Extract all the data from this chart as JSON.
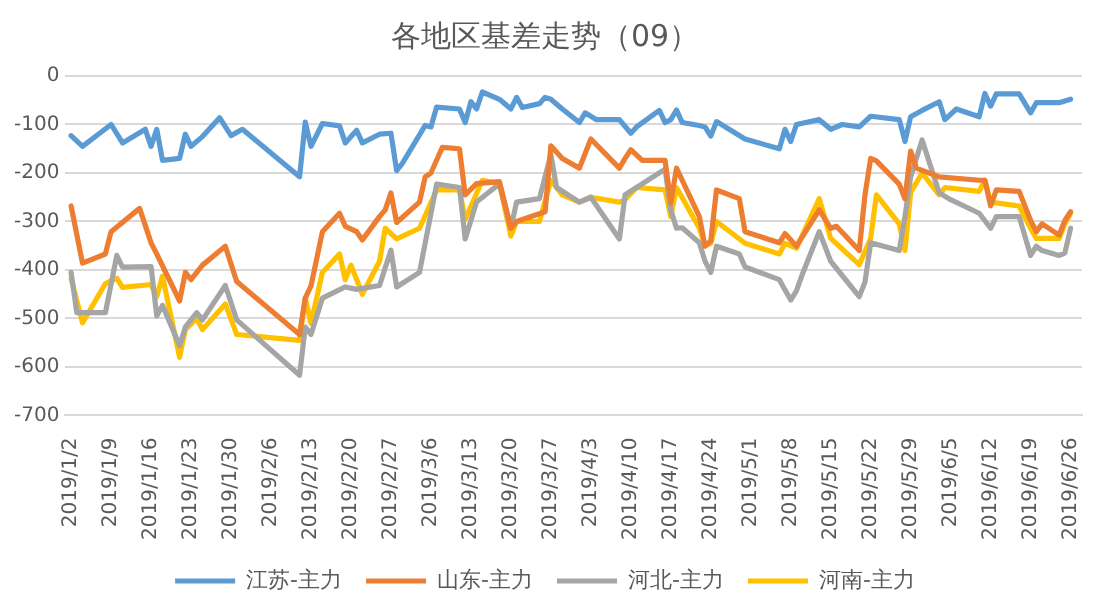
{
  "chart_data": {
    "type": "line",
    "title": "各地区基差走势（09）",
    "xlim": [
      "2019-01-01",
      "2019-06-28"
    ],
    "xticks": [
      {
        "value": "2019-01-02",
        "label": "2019/1/2"
      },
      {
        "value": "2019-01-09",
        "label": "2019/1/9"
      },
      {
        "value": "2019-01-16",
        "label": "2019/1/16"
      },
      {
        "value": "2019-01-23",
        "label": "2019/1/23"
      },
      {
        "value": "2019-01-30",
        "label": "2019/1/30"
      },
      {
        "value": "2019-02-06",
        "label": "2019/2/6"
      },
      {
        "value": "2019-02-13",
        "label": "2019/2/13"
      },
      {
        "value": "2019-02-20",
        "label": "2019/2/20"
      },
      {
        "value": "2019-02-27",
        "label": "2019/2/27"
      },
      {
        "value": "2019-03-06",
        "label": "2019/3/6"
      },
      {
        "value": "2019-03-13",
        "label": "2019/3/13"
      },
      {
        "value": "2019-03-20",
        "label": "2019/3/20"
      },
      {
        "value": "2019-03-27",
        "label": "2019/3/27"
      },
      {
        "value": "2019-04-03",
        "label": "2019/4/3"
      },
      {
        "value": "2019-04-10",
        "label": "2019/4/10"
      },
      {
        "value": "2019-04-17",
        "label": "2019/4/17"
      },
      {
        "value": "2019-04-24",
        "label": "2019/4/24"
      },
      {
        "value": "2019-05-01",
        "label": "2019/5/1"
      },
      {
        "value": "2019-05-08",
        "label": "2019/5/8"
      },
      {
        "value": "2019-05-15",
        "label": "2019/5/15"
      },
      {
        "value": "2019-05-22",
        "label": "2019/5/22"
      },
      {
        "value": "2019-05-29",
        "label": "2019/5/29"
      },
      {
        "value": "2019-06-05",
        "label": "2019/6/5"
      },
      {
        "value": "2019-06-12",
        "label": "2019/6/12"
      },
      {
        "value": "2019-06-19",
        "label": "2019/6/19"
      },
      {
        "value": "2019-06-26",
        "label": "2019/6/26"
      }
    ],
    "ylim": [
      -700,
      0
    ],
    "yticks": [
      -700,
      -600,
      -500,
      -400,
      -300,
      -200,
      -100,
      0
    ],
    "grid": "y",
    "legend": "bottom",
    "line_style": "solid",
    "series": [
      {
        "name": "江苏-主力",
        "color": "#5b9bd5",
        "x": [
          "2019-01-02",
          "2019-01-04",
          "2019-01-09",
          "2019-01-11",
          "2019-01-15",
          "2019-01-16",
          "2019-01-17",
          "2019-01-18",
          "2019-01-21",
          "2019-01-22",
          "2019-01-23",
          "2019-01-25",
          "2019-01-28",
          "2019-01-30",
          "2019-02-01",
          "2019-02-11",
          "2019-02-12",
          "2019-02-13",
          "2019-02-15",
          "2019-02-18",
          "2019-02-19",
          "2019-02-21",
          "2019-02-22",
          "2019-02-25",
          "2019-02-27",
          "2019-02-28",
          "2019-03-01",
          "2019-03-05",
          "2019-03-06",
          "2019-03-07",
          "2019-03-11",
          "2019-03-12",
          "2019-03-13",
          "2019-03-14",
          "2019-03-15",
          "2019-03-18",
          "2019-03-20",
          "2019-03-21",
          "2019-03-22",
          "2019-03-25",
          "2019-03-26",
          "2019-03-27",
          "2019-03-29",
          "2019-04-01",
          "2019-04-02",
          "2019-04-04",
          "2019-04-08",
          "2019-04-10",
          "2019-04-11",
          "2019-04-15",
          "2019-04-16",
          "2019-04-17",
          "2019-04-18",
          "2019-04-19",
          "2019-04-22",
          "2019-04-23",
          "2019-04-24",
          "2019-04-25",
          "2019-04-30",
          "2019-05-06",
          "2019-05-07",
          "2019-05-08",
          "2019-05-09",
          "2019-05-13",
          "2019-05-15",
          "2019-05-17",
          "2019-05-20",
          "2019-05-22",
          "2019-05-27",
          "2019-05-28",
          "2019-05-29",
          "2019-05-31",
          "2019-06-03",
          "2019-06-04",
          "2019-06-06",
          "2019-06-10",
          "2019-06-11",
          "2019-06-12",
          "2019-06-13",
          "2019-06-17",
          "2019-06-19",
          "2019-06-20",
          "2019-06-24",
          "2019-06-26"
        ],
        "values": [
          -123,
          -145,
          -100,
          -138,
          -110,
          -145,
          -110,
          -174,
          -170,
          -120,
          -145,
          -125,
          -86,
          -123,
          -110,
          -208,
          -95,
          -145,
          -98,
          -103,
          -138,
          -112,
          -138,
          -120,
          -118,
          -195,
          -180,
          -102,
          -105,
          -64,
          -68,
          -96,
          -53,
          -68,
          -33,
          -48,
          -68,
          -44,
          -65,
          -57,
          -44,
          -48,
          -68,
          -96,
          -76,
          -90,
          -90,
          -118,
          -105,
          -71,
          -96,
          -90,
          -70,
          -96,
          -102,
          -105,
          -124,
          -94,
          -130,
          -150,
          -110,
          -135,
          -100,
          -90,
          -110,
          -100,
          -105,
          -83,
          -90,
          -135,
          -84,
          -71,
          -53,
          -90,
          -68,
          -84,
          -36,
          -62,
          -37,
          -37,
          -76,
          -55,
          -55,
          -48
        ]
      },
      {
        "name": "山东-主力",
        "color": "#ed7d31",
        "x": [
          "2019-01-02",
          "2019-01-04",
          "2019-01-08",
          "2019-01-09",
          "2019-01-14",
          "2019-01-16",
          "2019-01-17",
          "2019-01-21",
          "2019-01-22",
          "2019-01-23",
          "2019-01-25",
          "2019-01-29",
          "2019-01-31",
          "2019-02-11",
          "2019-02-12",
          "2019-02-13",
          "2019-02-15",
          "2019-02-18",
          "2019-02-19",
          "2019-02-21",
          "2019-02-22",
          "2019-02-25",
          "2019-02-26",
          "2019-02-27",
          "2019-02-28",
          "2019-03-04",
          "2019-03-05",
          "2019-03-06",
          "2019-03-08",
          "2019-03-11",
          "2019-03-12",
          "2019-03-14",
          "2019-03-18",
          "2019-03-20",
          "2019-03-21",
          "2019-03-26",
          "2019-03-27",
          "2019-03-29",
          "2019-04-01",
          "2019-04-03",
          "2019-04-08",
          "2019-04-09",
          "2019-04-10",
          "2019-04-12",
          "2019-04-16",
          "2019-04-17",
          "2019-04-18",
          "2019-04-22",
          "2019-04-23",
          "2019-04-24",
          "2019-04-25",
          "2019-04-29",
          "2019-04-30",
          "2019-05-06",
          "2019-05-07",
          "2019-05-09",
          "2019-05-13",
          "2019-05-15",
          "2019-05-16",
          "2019-05-20",
          "2019-05-21",
          "2019-05-22",
          "2019-05-23",
          "2019-05-27",
          "2019-05-28",
          "2019-05-29",
          "2019-05-30",
          "2019-06-03",
          "2019-06-10",
          "2019-06-11",
          "2019-06-12",
          "2019-06-13",
          "2019-06-17",
          "2019-06-19",
          "2019-06-20",
          "2019-06-21",
          "2019-06-24",
          "2019-06-25",
          "2019-06-26"
        ],
        "values": [
          -268,
          -386,
          -367,
          -321,
          -273,
          -344,
          -367,
          -464,
          -405,
          -420,
          -390,
          -351,
          -424,
          -533,
          -458,
          -433,
          -321,
          -283,
          -310,
          -321,
          -338,
          -290,
          -276,
          -241,
          -302,
          -260,
          -208,
          -200,
          -147,
          -150,
          -245,
          -222,
          -218,
          -314,
          -300,
          -280,
          -144,
          -170,
          -190,
          -130,
          -190,
          -170,
          -152,
          -174,
          -174,
          -261,
          -190,
          -290,
          -351,
          -340,
          -235,
          -253,
          -321,
          -344,
          -325,
          -351,
          -276,
          -314,
          -310,
          -360,
          -245,
          -170,
          -175,
          -223,
          -253,
          -155,
          -190,
          -208,
          -215,
          -215,
          -268,
          -235,
          -238,
          -298,
          -321,
          -305,
          -328,
          -298,
          -280
        ]
      },
      {
        "name": "河北-主力",
        "color": "#a5a5a5",
        "x": [
          "2019-01-02",
          "2019-01-03",
          "2019-01-08",
          "2019-01-10",
          "2019-01-11",
          "2019-01-16",
          "2019-01-17",
          "2019-01-18",
          "2019-01-21",
          "2019-01-22",
          "2019-01-24",
          "2019-01-25",
          "2019-01-29",
          "2019-01-31",
          "2019-02-11",
          "2019-02-12",
          "2019-02-13",
          "2019-02-15",
          "2019-02-19",
          "2019-02-21",
          "2019-02-25",
          "2019-02-27",
          "2019-02-28",
          "2019-03-04",
          "2019-03-07",
          "2019-03-11",
          "2019-03-12",
          "2019-03-14",
          "2019-03-18",
          "2019-03-20",
          "2019-03-21",
          "2019-03-25",
          "2019-03-27",
          "2019-03-28",
          "2019-04-01",
          "2019-04-03",
          "2019-04-08",
          "2019-04-09",
          "2019-04-11",
          "2019-04-16",
          "2019-04-17",
          "2019-04-18",
          "2019-04-19",
          "2019-04-22",
          "2019-04-23",
          "2019-04-24",
          "2019-04-25",
          "2019-04-29",
          "2019-04-30",
          "2019-05-06",
          "2019-05-08",
          "2019-05-09",
          "2019-05-10",
          "2019-05-13",
          "2019-05-15",
          "2019-05-20",
          "2019-05-21",
          "2019-05-22",
          "2019-05-27",
          "2019-05-28",
          "2019-05-29",
          "2019-05-31",
          "2019-06-03",
          "2019-06-05",
          "2019-06-10",
          "2019-06-12",
          "2019-06-13",
          "2019-06-17",
          "2019-06-19",
          "2019-06-20",
          "2019-06-21",
          "2019-06-24",
          "2019-06-25",
          "2019-06-26"
        ],
        "values": [
          -405,
          -488,
          -488,
          -370,
          -394,
          -393,
          -495,
          -473,
          -556,
          -518,
          -488,
          -503,
          -432,
          -503,
          -617,
          -518,
          -533,
          -458,
          -435,
          -440,
          -432,
          -359,
          -435,
          -405,
          -223,
          -230,
          -336,
          -260,
          -222,
          -314,
          -260,
          -253,
          -162,
          -230,
          -260,
          -250,
          -336,
          -245,
          -230,
          -192,
          -276,
          -314,
          -313,
          -344,
          -382,
          -405,
          -351,
          -367,
          -394,
          -420,
          -462,
          -443,
          -410,
          -321,
          -382,
          -455,
          -425,
          -344,
          -360,
          -290,
          -208,
          -132,
          -241,
          -255,
          -283,
          -314,
          -290,
          -290,
          -370,
          -351,
          -360,
          -370,
          -365,
          -314
        ]
      },
      {
        "name": "河南-主力",
        "color": "#ffc000",
        "x": [
          "2019-01-02",
          "2019-01-04",
          "2019-01-08",
          "2019-01-10",
          "2019-01-11",
          "2019-01-16",
          "2019-01-17",
          "2019-01-18",
          "2019-01-21",
          "2019-01-22",
          "2019-01-24",
          "2019-01-25",
          "2019-01-29",
          "2019-01-31",
          "2019-02-11",
          "2019-02-12",
          "2019-02-13",
          "2019-02-15",
          "2019-02-18",
          "2019-02-19",
          "2019-02-20",
          "2019-02-22",
          "2019-02-25",
          "2019-02-26",
          "2019-02-28",
          "2019-03-04",
          "2019-03-07",
          "2019-03-11",
          "2019-03-12",
          "2019-03-15",
          "2019-03-18",
          "2019-03-20",
          "2019-03-21",
          "2019-03-25",
          "2019-03-27",
          "2019-03-29",
          "2019-04-01",
          "2019-04-03",
          "2019-04-08",
          "2019-04-09",
          "2019-04-11",
          "2019-04-16",
          "2019-04-17",
          "2019-04-18",
          "2019-04-22",
          "2019-04-23",
          "2019-04-24",
          "2019-04-25",
          "2019-04-30",
          "2019-05-06",
          "2019-05-07",
          "2019-05-09",
          "2019-05-13",
          "2019-05-15",
          "2019-05-20",
          "2019-05-22",
          "2019-05-23",
          "2019-05-27",
          "2019-05-28",
          "2019-05-29",
          "2019-05-31",
          "2019-06-03",
          "2019-06-04",
          "2019-06-10",
          "2019-06-11",
          "2019-06-12",
          "2019-06-17",
          "2019-06-19",
          "2019-06-20",
          "2019-06-24",
          "2019-06-25",
          "2019-06-26"
        ],
        "values": [
          -418,
          -509,
          -428,
          -417,
          -436,
          -430,
          -455,
          -413,
          -580,
          -523,
          -500,
          -523,
          -470,
          -533,
          -545,
          -458,
          -510,
          -405,
          -367,
          -420,
          -390,
          -450,
          -382,
          -314,
          -336,
          -314,
          -235,
          -235,
          -296,
          -215,
          -222,
          -330,
          -300,
          -300,
          -215,
          -245,
          -260,
          -250,
          -260,
          -255,
          -230,
          -235,
          -290,
          -230,
          -314,
          -350,
          -345,
          -300,
          -345,
          -367,
          -345,
          -355,
          -253,
          -335,
          -389,
          -335,
          -245,
          -305,
          -360,
          -240,
          -200,
          -245,
          -230,
          -238,
          -215,
          -260,
          -268,
          -314,
          -335,
          -335,
          -305,
          -283
        ]
      }
    ]
  }
}
